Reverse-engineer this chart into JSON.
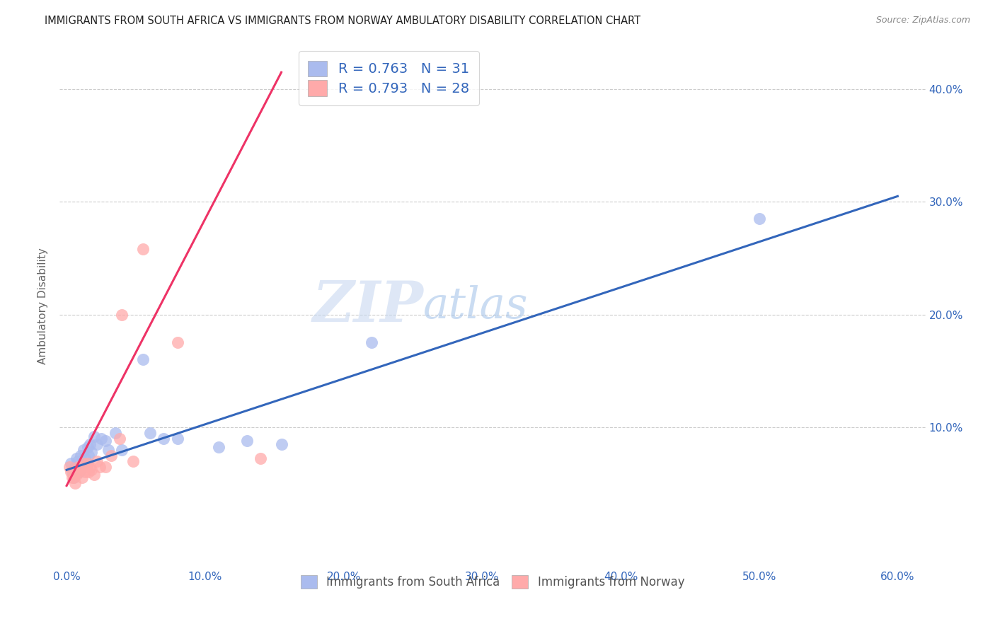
{
  "title": "IMMIGRANTS FROM SOUTH AFRICA VS IMMIGRANTS FROM NORWAY AMBULATORY DISABILITY CORRELATION CHART",
  "source": "Source: ZipAtlas.com",
  "ylabel": "Ambulatory Disability",
  "xlim": [
    -0.005,
    0.62
  ],
  "ylim": [
    -0.025,
    0.44
  ],
  "xtick_labels": [
    "0.0%",
    "10.0%",
    "20.0%",
    "30.0%",
    "40.0%",
    "50.0%",
    "60.0%"
  ],
  "xtick_values": [
    0.0,
    0.1,
    0.2,
    0.3,
    0.4,
    0.5,
    0.6
  ],
  "ytick_values": [
    0.1,
    0.2,
    0.3,
    0.4
  ],
  "ytick_labels": [
    "10.0%",
    "20.0%",
    "30.0%",
    "40.0%"
  ],
  "south_africa_color": "#AABBEE",
  "norway_color": "#FFAAAA",
  "south_africa_line_color": "#3366BB",
  "norway_line_color": "#EE3366",
  "south_africa_R": 0.763,
  "south_africa_N": 31,
  "norway_R": 0.793,
  "norway_N": 28,
  "legend_label_sa": "Immigrants from South Africa",
  "legend_label_no": "Immigrants from Norway",
  "watermark_zip": "ZIP",
  "watermark_atlas": "atlas",
  "background_color": "#ffffff",
  "grid_color": "#cccccc",
  "south_africa_x": [
    0.003,
    0.004,
    0.005,
    0.006,
    0.007,
    0.008,
    0.009,
    0.01,
    0.011,
    0.012,
    0.013,
    0.015,
    0.016,
    0.017,
    0.018,
    0.02,
    0.022,
    0.025,
    0.028,
    0.03,
    0.035,
    0.04,
    0.055,
    0.06,
    0.07,
    0.08,
    0.11,
    0.13,
    0.155,
    0.22,
    0.5
  ],
  "south_africa_y": [
    0.068,
    0.06,
    0.055,
    0.065,
    0.072,
    0.07,
    0.06,
    0.075,
    0.068,
    0.08,
    0.072,
    0.082,
    0.075,
    0.085,
    0.078,
    0.092,
    0.085,
    0.09,
    0.088,
    0.08,
    0.095,
    0.08,
    0.16,
    0.095,
    0.09,
    0.09,
    0.082,
    0.088,
    0.085,
    0.175,
    0.285
  ],
  "norway_x": [
    0.002,
    0.003,
    0.004,
    0.005,
    0.006,
    0.007,
    0.008,
    0.009,
    0.01,
    0.011,
    0.012,
    0.013,
    0.014,
    0.015,
    0.016,
    0.017,
    0.018,
    0.02,
    0.022,
    0.024,
    0.028,
    0.032,
    0.038,
    0.04,
    0.048,
    0.055,
    0.08,
    0.14
  ],
  "norway_y": [
    0.065,
    0.06,
    0.055,
    0.055,
    0.05,
    0.058,
    0.065,
    0.062,
    0.065,
    0.055,
    0.068,
    0.06,
    0.065,
    0.068,
    0.06,
    0.065,
    0.062,
    0.058,
    0.07,
    0.065,
    0.065,
    0.075,
    0.09,
    0.2,
    0.07,
    0.258,
    0.175,
    0.072
  ],
  "norway_line_x0": 0.0,
  "norway_line_y0": 0.048,
  "norway_line_x1": 0.155,
  "norway_line_y1": 0.415,
  "sa_line_x0": 0.0,
  "sa_line_y0": 0.062,
  "sa_line_x1": 0.6,
  "sa_line_y1": 0.305
}
